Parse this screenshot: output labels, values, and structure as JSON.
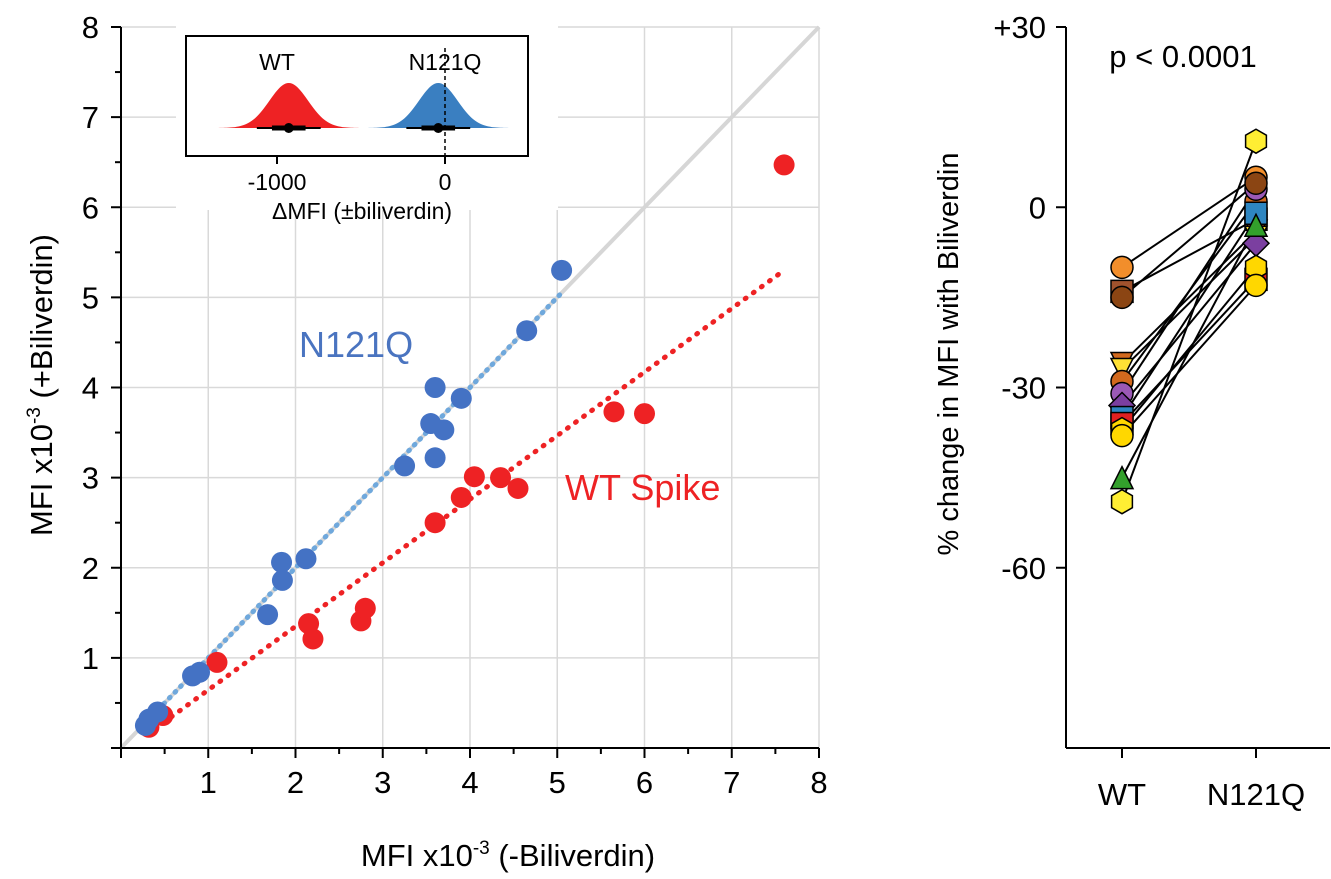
{
  "chart_data": [
    {
      "type": "scatter",
      "xlabel_main": "MFI x10",
      "xlabel_exp": "-3",
      "xlabel_tail": " (-Biliverdin)",
      "ylabel_main": "MFI x10",
      "ylabel_exp": "-3",
      "ylabel_tail": " (+Biliverdin)",
      "xlim": [
        0,
        8
      ],
      "ylim": [
        0,
        8
      ],
      "xticks": [
        "1",
        "2",
        "3",
        "4",
        "5",
        "6",
        "7",
        "8"
      ],
      "yticks": [
        "1",
        "2",
        "3",
        "4",
        "5",
        "6",
        "7",
        "8"
      ],
      "grid": true,
      "identity_line": true,
      "colors": {
        "N121Q": "#4472c4",
        "WT": "#ee2224",
        "identity": "#d6d6d6",
        "n121q_fit": "#6fa8dc"
      },
      "series": [
        {
          "name": "N121Q",
          "x": [
            0.28,
            0.32,
            0.42,
            0.82,
            0.9,
            1.68,
            1.84,
            1.85,
            2.12,
            3.25,
            3.55,
            3.6,
            3.6,
            3.7,
            3.9,
            4.65,
            5.05
          ],
          "y": [
            0.25,
            0.32,
            0.4,
            0.8,
            0.84,
            1.48,
            2.06,
            1.86,
            2.1,
            3.13,
            3.6,
            4.0,
            3.22,
            3.53,
            3.88,
            4.63,
            5.3
          ],
          "fit": [
            [
              0.3,
              0.3
            ],
            [
              5.05,
              5.05
            ]
          ]
        },
        {
          "name": "WT Spike",
          "x": [
            0.32,
            0.48,
            1.1,
            2.15,
            2.2,
            2.75,
            2.8,
            3.6,
            3.9,
            4.05,
            4.35,
            4.55,
            5.65,
            6.0,
            7.6
          ],
          "y": [
            0.23,
            0.36,
            0.95,
            1.38,
            1.21,
            1.41,
            1.55,
            2.5,
            2.78,
            3.01,
            3.0,
            2.88,
            3.73,
            3.71,
            6.47
          ],
          "fit": [
            [
              0.3,
              0.15
            ],
            [
              7.6,
              5.3
            ]
          ]
        }
      ],
      "labels": {
        "n121q": "N121Q",
        "wt": "WT Spike"
      },
      "inset": {
        "type": "distribution",
        "groups": [
          "WT",
          "N121Q"
        ],
        "xlabel": "ΔMFI (±biliverdin)",
        "xticks": [
          "-1000",
          "0"
        ],
        "xlim": [
          -1500,
          400
        ],
        "means": [
          -930,
          -40
        ]
      }
    },
    {
      "type": "line",
      "title": "p < 0.0001",
      "ylabel": "% change in MFI with Biliverdin",
      "categories": [
        "WT",
        "N121Q"
      ],
      "yticks": [
        "+30",
        "0",
        "-30",
        "-60"
      ],
      "ylim": [
        -90,
        30
      ],
      "pairs": [
        {
          "wt": -10,
          "n": 5,
          "marker": "circle",
          "color": "#f28e2b"
        },
        {
          "wt": -14,
          "n": -2,
          "marker": "square",
          "color": "#a0522d"
        },
        {
          "wt": -26,
          "n": -4,
          "marker": "triangle-down",
          "color": "#d2691e"
        },
        {
          "wt": -27,
          "n": -5,
          "marker": "triangle-down",
          "color": "#ffe135"
        },
        {
          "wt": -29,
          "n": 1,
          "marker": "circle",
          "color": "#d2691e"
        },
        {
          "wt": -31,
          "n": 3,
          "marker": "circle",
          "color": "#9b59b6"
        },
        {
          "wt": -33,
          "n": -6,
          "marker": "diamond",
          "color": "#7b3fa0"
        },
        {
          "wt": -35,
          "n": -1,
          "marker": "square",
          "color": "#2e86c1"
        },
        {
          "wt": -36,
          "n": -12,
          "marker": "square",
          "color": "#e02020"
        },
        {
          "wt": -37,
          "n": -10,
          "marker": "hexagon",
          "color": "#ffd700"
        },
        {
          "wt": -38,
          "n": -13,
          "marker": "circle",
          "color": "#ffd700"
        },
        {
          "wt": -45,
          "n": -3,
          "marker": "triangle-up",
          "color": "#33a02c"
        },
        {
          "wt": -49,
          "n": 11,
          "marker": "hexagon",
          "color": "#ffee33"
        },
        {
          "wt": -15,
          "n": 4,
          "marker": "circle",
          "color": "#8b4513"
        }
      ]
    }
  ]
}
